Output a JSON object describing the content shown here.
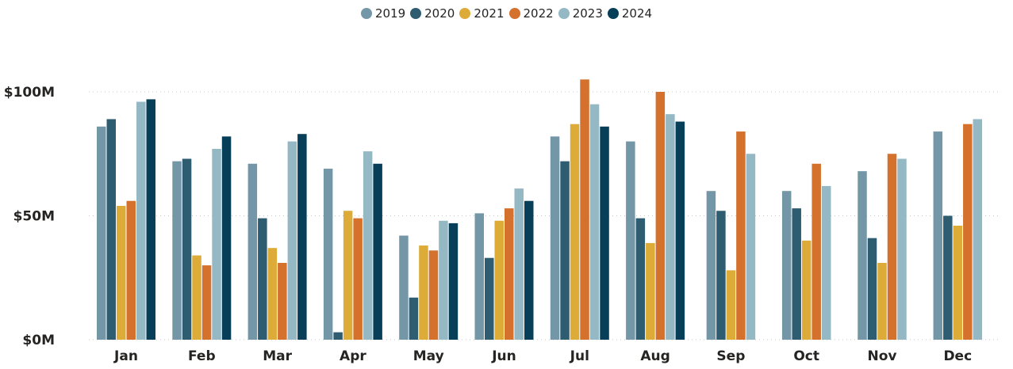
{
  "chart_data": {
    "type": "bar",
    "categories": [
      "Jan",
      "Feb",
      "Mar",
      "Apr",
      "May",
      "Jun",
      "Jul",
      "Aug",
      "Sep",
      "Oct",
      "Nov",
      "Dec"
    ],
    "series": [
      {
        "name": "2019",
        "color": "#7497a8",
        "values": [
          86,
          72,
          71,
          69,
          42,
          51,
          82,
          80,
          60,
          60,
          68,
          84
        ]
      },
      {
        "name": "2020",
        "color": "#2e5c71",
        "values": [
          89,
          73,
          49,
          3,
          17,
          33,
          72,
          49,
          52,
          53,
          41,
          50
        ]
      },
      {
        "name": "2021",
        "color": "#ddab37",
        "values": [
          54,
          34,
          37,
          52,
          38,
          48,
          87,
          39,
          28,
          40,
          31,
          46
        ]
      },
      {
        "name": "2022",
        "color": "#d4712d",
        "values": [
          56,
          30,
          31,
          49,
          36,
          53,
          105,
          100,
          84,
          71,
          75,
          87
        ]
      },
      {
        "name": "2023",
        "color": "#94b8c4",
        "values": [
          96,
          77,
          80,
          76,
          48,
          61,
          95,
          91,
          75,
          62,
          73,
          89
        ]
      },
      {
        "name": "2024",
        "color": "#073f59",
        "values": [
          97,
          82,
          83,
          71,
          47,
          56,
          86,
          88,
          null,
          null,
          null,
          null
        ]
      }
    ],
    "yticks": [
      "$0M",
      "$50M",
      "$100M"
    ],
    "ytick_values": [
      0,
      50,
      100
    ],
    "ylim": [
      0,
      100
    ],
    "xlabel": "",
    "ylabel": "",
    "title": "",
    "grid": "horizontal-dotted",
    "legend_position": "top-center"
  }
}
